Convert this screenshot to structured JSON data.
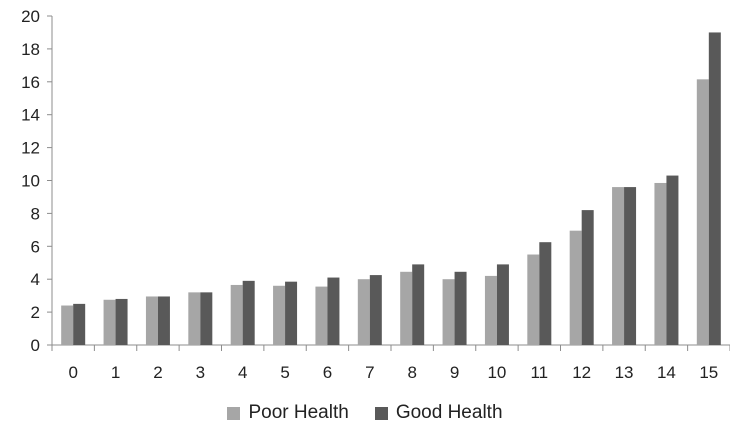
{
  "chart_data": {
    "type": "bar",
    "categories": [
      "0",
      "1",
      "2",
      "3",
      "4",
      "5",
      "6",
      "7",
      "8",
      "9",
      "10",
      "11",
      "12",
      "13",
      "14",
      "15"
    ],
    "series": [
      {
        "name": "Poor Health",
        "color": "#a6a6a6",
        "values": [
          2.4,
          2.75,
          2.95,
          3.2,
          3.65,
          3.6,
          3.55,
          4.0,
          4.45,
          4.0,
          4.2,
          5.5,
          6.95,
          9.6,
          9.85,
          16.15
        ]
      },
      {
        "name": "Good Health",
        "color": "#595959",
        "values": [
          2.5,
          2.8,
          2.95,
          3.2,
          3.9,
          3.85,
          4.1,
          4.25,
          4.9,
          4.45,
          4.9,
          6.25,
          8.2,
          9.6,
          10.3,
          19.0
        ]
      }
    ],
    "ylim": [
      0,
      20
    ],
    "yticks": [
      0,
      2,
      4,
      6,
      8,
      10,
      12,
      14,
      16,
      18,
      20
    ],
    "title": "",
    "xlabel": "",
    "ylabel": "",
    "grid": false,
    "legend_position": "bottom"
  },
  "legend": {
    "items": [
      {
        "label": "Poor Health",
        "color": "#a6a6a6"
      },
      {
        "label": "Good Health",
        "color": "#595959"
      }
    ]
  }
}
